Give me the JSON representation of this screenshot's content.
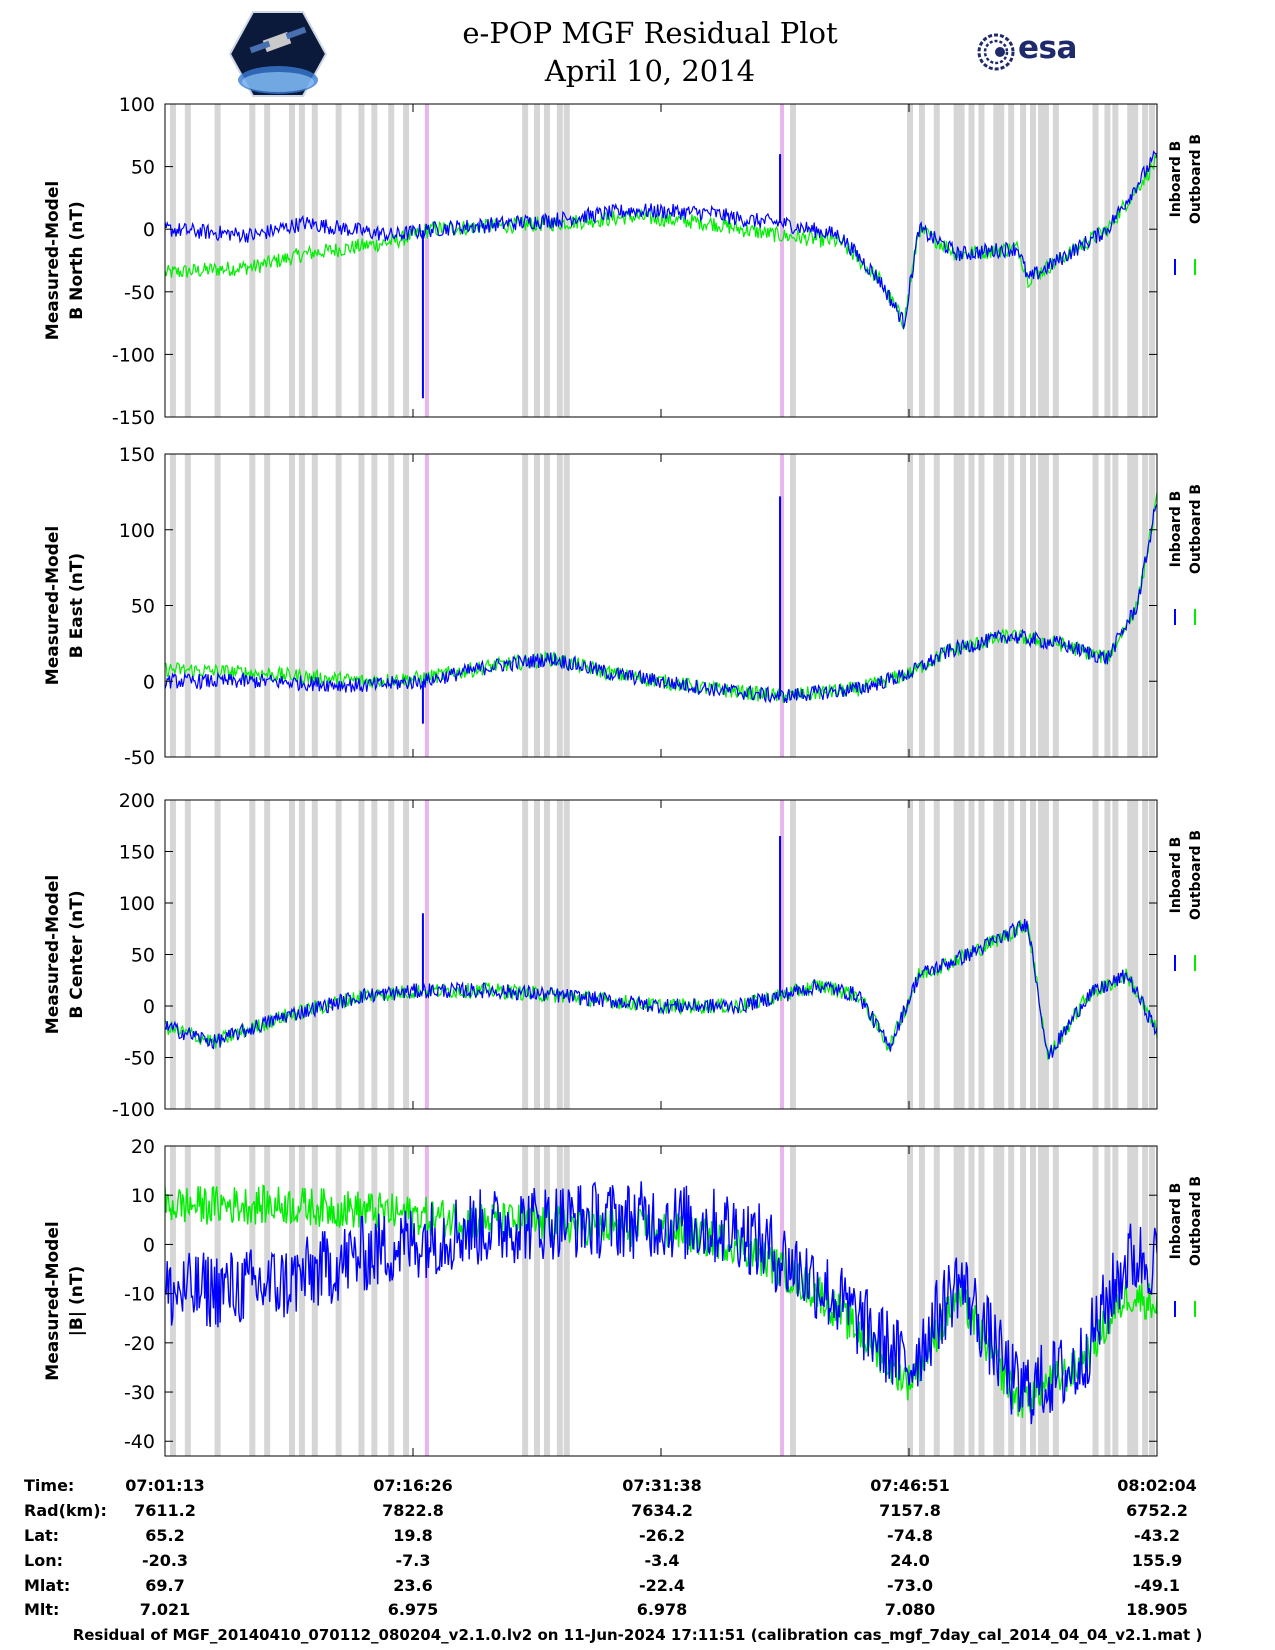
{
  "header": {
    "title": "e-POP MGF Residual Plot",
    "date": "April 10, 2014",
    "left_logo": "cassiope-logo",
    "right_logo_text": "esa"
  },
  "colors": {
    "inboard": "#0000ff",
    "outboard": "#00ee00",
    "gap_band": "#d6d6d6",
    "event_band": "#e8b6ec"
  },
  "chart_data": [
    {
      "type": "line",
      "ylabel": "Measured-Model\nB North (nT)",
      "ylim": [
        -150,
        100
      ],
      "yticks": [
        100,
        50,
        0,
        -50,
        -100,
        -150
      ],
      "series": [
        {
          "name": "Inboard B",
          "keypoints": [
            [
              0,
              0
            ],
            [
              0.09,
              -5
            ],
            [
              0.14,
              5
            ],
            [
              0.23,
              -5
            ],
            [
              0.27,
              0
            ],
            [
              0.32,
              3
            ],
            [
              0.4,
              8
            ],
            [
              0.47,
              15
            ],
            [
              0.55,
              13
            ],
            [
              0.58,
              8
            ],
            [
              0.62,
              5
            ],
            [
              0.68,
              -5
            ],
            [
              0.72,
              -40
            ],
            [
              0.745,
              -75
            ],
            [
              0.76,
              0
            ],
            [
              0.8,
              -20
            ],
            [
              0.86,
              -15
            ],
            [
              0.87,
              -40
            ],
            [
              0.95,
              0
            ],
            [
              1.0,
              60
            ]
          ]
        },
        {
          "name": "Outboard B",
          "keypoints": [
            [
              0,
              -35
            ],
            [
              0.09,
              -30
            ],
            [
              0.14,
              -20
            ],
            [
              0.23,
              -10
            ],
            [
              0.27,
              0
            ],
            [
              0.32,
              2
            ],
            [
              0.4,
              5
            ],
            [
              0.47,
              10
            ],
            [
              0.55,
              5
            ],
            [
              0.58,
              0
            ],
            [
              0.62,
              -5
            ],
            [
              0.68,
              -10
            ],
            [
              0.72,
              -40
            ],
            [
              0.745,
              -75
            ],
            [
              0.76,
              0
            ],
            [
              0.8,
              -20
            ],
            [
              0.86,
              -15
            ],
            [
              0.87,
              -40
            ],
            [
              0.95,
              0
            ],
            [
              1.0,
              55
            ]
          ]
        }
      ],
      "spikes": [
        [
          0.26,
          -135
        ],
        [
          0.62,
          60
        ]
      ],
      "legend": [
        "Inboard B",
        "Outboard B"
      ]
    },
    {
      "type": "line",
      "ylabel": "Measured-Model\nB East (nT)",
      "ylim": [
        -50,
        150
      ],
      "yticks": [
        150,
        100,
        50,
        0,
        -50
      ],
      "series": [
        {
          "name": "Inboard B",
          "keypoints": [
            [
              0,
              0
            ],
            [
              0.1,
              0
            ],
            [
              0.2,
              -3
            ],
            [
              0.26,
              0
            ],
            [
              0.33,
              10
            ],
            [
              0.39,
              15
            ],
            [
              0.45,
              5
            ],
            [
              0.55,
              -5
            ],
            [
              0.62,
              -10
            ],
            [
              0.7,
              -5
            ],
            [
              0.75,
              5
            ],
            [
              0.79,
              20
            ],
            [
              0.85,
              30
            ],
            [
              0.9,
              25
            ],
            [
              0.95,
              15
            ],
            [
              0.98,
              50
            ],
            [
              1.0,
              120
            ]
          ]
        },
        {
          "name": "Outboard B",
          "keypoints": [
            [
              0,
              8
            ],
            [
              0.1,
              5
            ],
            [
              0.2,
              0
            ],
            [
              0.26,
              2
            ],
            [
              0.33,
              10
            ],
            [
              0.39,
              15
            ],
            [
              0.45,
              5
            ],
            [
              0.55,
              -5
            ],
            [
              0.62,
              -10
            ],
            [
              0.7,
              -5
            ],
            [
              0.75,
              5
            ],
            [
              0.79,
              20
            ],
            [
              0.85,
              30
            ],
            [
              0.9,
              25
            ],
            [
              0.95,
              15
            ],
            [
              0.98,
              50
            ],
            [
              1.0,
              120
            ]
          ]
        }
      ],
      "spikes": [
        [
          0.26,
          -28
        ],
        [
          0.62,
          122
        ]
      ],
      "legend": [
        "Inboard B",
        "Outboard B"
      ]
    },
    {
      "type": "line",
      "ylabel": "Measured-Model\nB Center (nT)",
      "ylim": [
        -100,
        200
      ],
      "yticks": [
        200,
        150,
        100,
        50,
        0,
        -50,
        -100
      ],
      "series": [
        {
          "name": "Inboard B",
          "keypoints": [
            [
              0,
              -20
            ],
            [
              0.05,
              -35
            ],
            [
              0.12,
              -10
            ],
            [
              0.2,
              10
            ],
            [
              0.26,
              15
            ],
            [
              0.33,
              15
            ],
            [
              0.4,
              10
            ],
            [
              0.5,
              0
            ],
            [
              0.58,
              0
            ],
            [
              0.66,
              20
            ],
            [
              0.7,
              10
            ],
            [
              0.73,
              -40
            ],
            [
              0.76,
              30
            ],
            [
              0.81,
              50
            ],
            [
              0.87,
              80
            ],
            [
              0.89,
              -50
            ],
            [
              0.93,
              10
            ],
            [
              0.97,
              30
            ],
            [
              1.0,
              -25
            ]
          ]
        },
        {
          "name": "Outboard B",
          "keypoints": [
            [
              0,
              -20
            ],
            [
              0.05,
              -35
            ],
            [
              0.12,
              -10
            ],
            [
              0.2,
              10
            ],
            [
              0.26,
              15
            ],
            [
              0.33,
              15
            ],
            [
              0.4,
              10
            ],
            [
              0.5,
              0
            ],
            [
              0.58,
              0
            ],
            [
              0.66,
              20
            ],
            [
              0.7,
              10
            ],
            [
              0.73,
              -40
            ],
            [
              0.76,
              30
            ],
            [
              0.81,
              50
            ],
            [
              0.87,
              80
            ],
            [
              0.89,
              -50
            ],
            [
              0.93,
              10
            ],
            [
              0.97,
              30
            ],
            [
              1.0,
              -25
            ]
          ]
        }
      ],
      "spikes": [
        [
          0.26,
          90
        ],
        [
          0.62,
          165
        ]
      ],
      "legend": [
        "Inboard B",
        "Outboard B"
      ]
    },
    {
      "type": "line",
      "ylabel": "Measured-Model\n|B| (nT)",
      "ylim": [
        -43,
        20
      ],
      "yticks": [
        20,
        10,
        0,
        -10,
        -20,
        -30,
        -40
      ],
      "series": [
        {
          "name": "Inboard B",
          "keypoints": [
            [
              0,
              -10
            ],
            [
              0.12,
              -8
            ],
            [
              0.2,
              -2
            ],
            [
              0.3,
              3
            ],
            [
              0.4,
              5
            ],
            [
              0.5,
              5
            ],
            [
              0.58,
              3
            ],
            [
              0.66,
              -8
            ],
            [
              0.75,
              -25
            ],
            [
              0.8,
              -7
            ],
            [
              0.86,
              -30
            ],
            [
              0.92,
              -25
            ],
            [
              0.97,
              -3
            ],
            [
              1.0,
              -3
            ]
          ],
          "band": 8
        },
        {
          "name": "Outboard B",
          "keypoints": [
            [
              0,
              8
            ],
            [
              0.12,
              8
            ],
            [
              0.2,
              7
            ],
            [
              0.3,
              5
            ],
            [
              0.4,
              4
            ],
            [
              0.5,
              3
            ],
            [
              0.58,
              0
            ],
            [
              0.66,
              -10
            ],
            [
              0.75,
              -28
            ],
            [
              0.8,
              -10
            ],
            [
              0.86,
              -32
            ],
            [
              0.92,
              -25
            ],
            [
              0.97,
              -10
            ],
            [
              1.0,
              -12
            ]
          ],
          "band": 4
        }
      ],
      "spikes": [],
      "legend": [
        "Inboard B",
        "Outboard B"
      ]
    }
  ],
  "ephemeris": {
    "labels": [
      "Time:",
      "Rad(km):",
      "Lat:",
      "Lon:",
      "Mlat:",
      "Mlt:"
    ],
    "columns": [
      [
        "07:01:13",
        "7611.2",
        "65.2",
        "-20.3",
        "69.7",
        "7.021"
      ],
      [
        "07:16:26",
        "7822.8",
        "19.8",
        "-7.3",
        "23.6",
        "6.975"
      ],
      [
        "07:31:38",
        "7634.2",
        "-26.2",
        "-3.4",
        "-22.4",
        "6.978"
      ],
      [
        "07:46:51",
        "7157.8",
        "-74.8",
        "24.0",
        "-73.0",
        "7.080"
      ],
      [
        "08:02:04",
        "6752.2",
        "-43.2",
        "155.9",
        "-49.1",
        "18.905"
      ]
    ]
  },
  "gap_bands": [
    0.005,
    0.02,
    0.05,
    0.085,
    0.1,
    0.125,
    0.135,
    0.148,
    0.172,
    0.195,
    0.208,
    0.225,
    0.24,
    0.36,
    0.372,
    0.382,
    0.395,
    0.402,
    0.63,
    0.748,
    0.76,
    0.775,
    0.795,
    0.8,
    0.81,
    0.82,
    0.835,
    0.84,
    0.85,
    0.862,
    0.872,
    0.88,
    0.885,
    0.895,
    0.935,
    0.947,
    0.955,
    0.97,
    0.975,
    0.985,
    0.992
  ],
  "event_bands": [
    0.262,
    0.62
  ],
  "footer": "Residual of MGF_20140410_070112_080204_v2.1.0.lv2 on 11-Jun-2024 17:11:51 (calibration cas_mgf_7day_cal_2014_04_04_v2.1.mat )"
}
